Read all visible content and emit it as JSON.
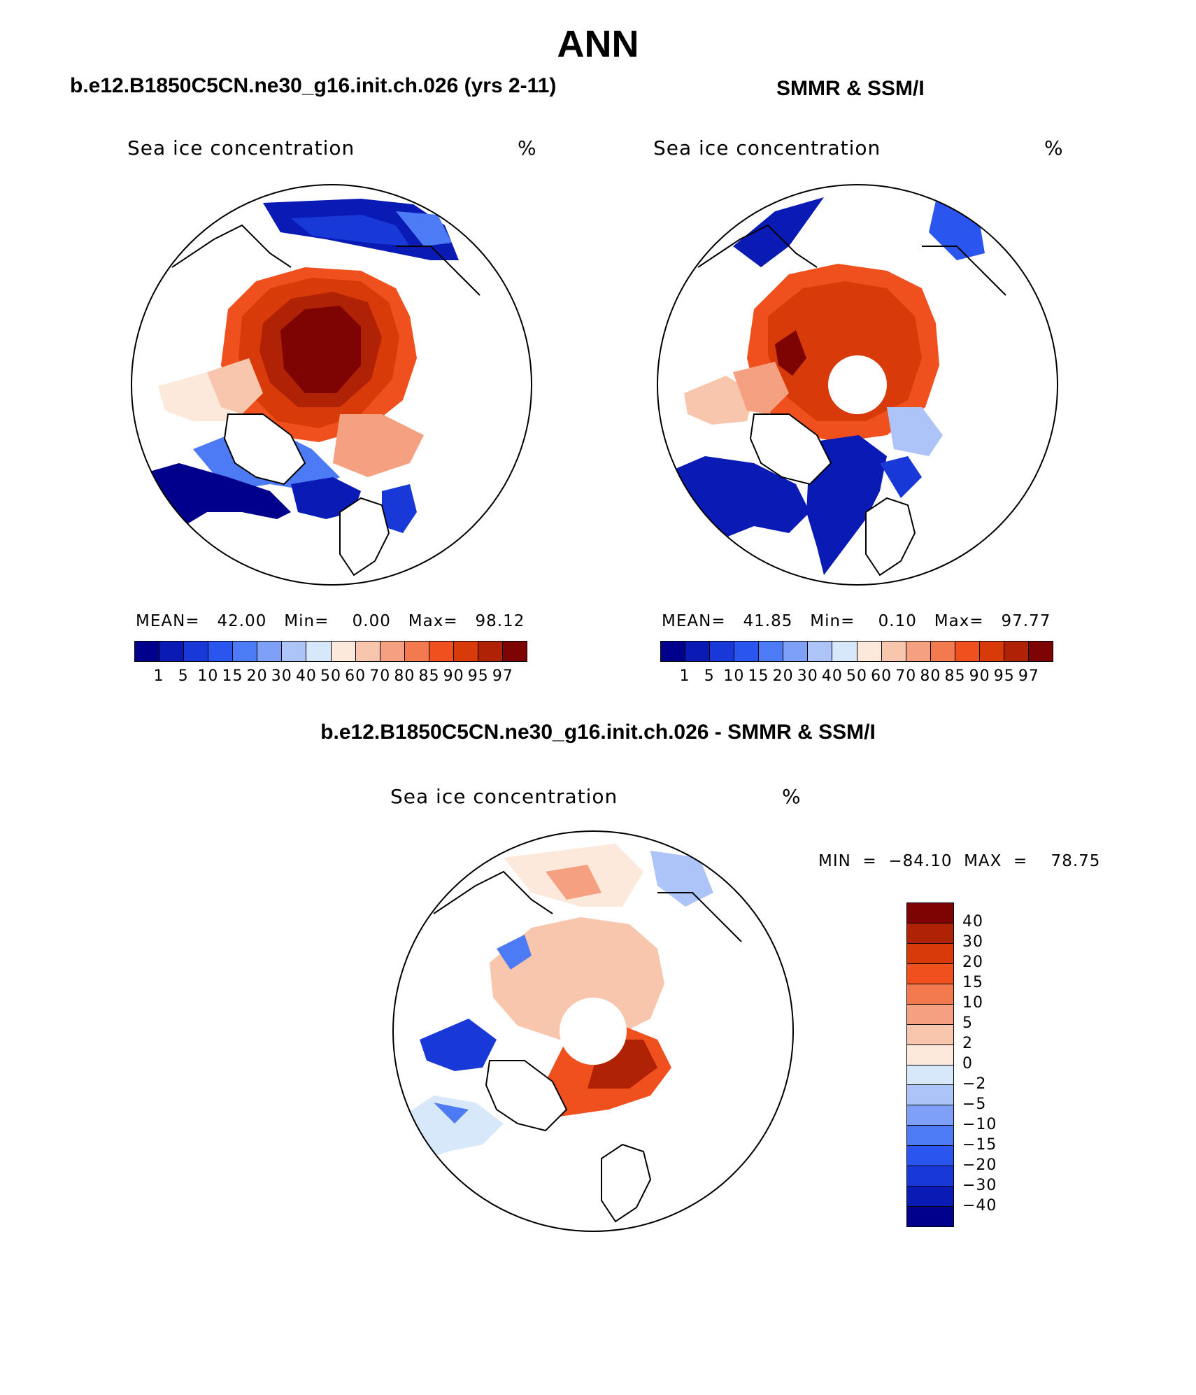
{
  "title": "ANN",
  "left_panel": {
    "header": "b.e12.B1850C5CN.ne30_g16.init.ch.026 (yrs 2-11)",
    "label": "Sea ice concentration",
    "unit": "%",
    "stats": "MEAN=   42.00   Min=    0.00   Max=   98.12"
  },
  "right_panel": {
    "header": "SMMR & SSM/I",
    "label": "Sea ice concentration",
    "unit": "%",
    "stats": "MEAN=   41.85   Min=    0.10   Max=   97.77"
  },
  "diff_panel": {
    "header": "b.e12.B1850C5CN.ne30_g16.init.ch.026 - SMMR & SSM/I",
    "label": "Sea ice concentration",
    "unit": "%",
    "stats": "MIN  =  −84.10  MAX  =    78.75"
  },
  "colorbar_concentration": {
    "colors": [
      "#00008c",
      "#0a1ab4",
      "#1838d8",
      "#2a55ee",
      "#4d7af5",
      "#7fa0f7",
      "#adc4f9",
      "#d8e8fb",
      "#fce9dc",
      "#f8c6ad",
      "#f5a080",
      "#f37a4e",
      "#f0501e",
      "#d83a0a",
      "#b02206",
      "#7e0404"
    ],
    "tick_labels": [
      "1",
      "5",
      "10",
      "15",
      "20",
      "30",
      "40",
      "50",
      "60",
      "70",
      "80",
      "85",
      "90",
      "95",
      "97"
    ]
  },
  "colorbar_difference": {
    "colors": [
      "#7e0404",
      "#b02206",
      "#d83a0a",
      "#f0501e",
      "#f37a4e",
      "#f5a080",
      "#f8c6ad",
      "#fce9dc",
      "#d8e8fb",
      "#adc4f9",
      "#7fa0f7",
      "#4d7af5",
      "#2a55ee",
      "#1838d8",
      "#0a1ab4",
      "#00008c"
    ],
    "tick_labels": [
      "40",
      "30",
      "20",
      "15",
      "10",
      "5",
      "2",
      "0",
      "−2",
      "−5",
      "−10",
      "−15",
      "−20",
      "−30",
      "−40"
    ]
  }
}
